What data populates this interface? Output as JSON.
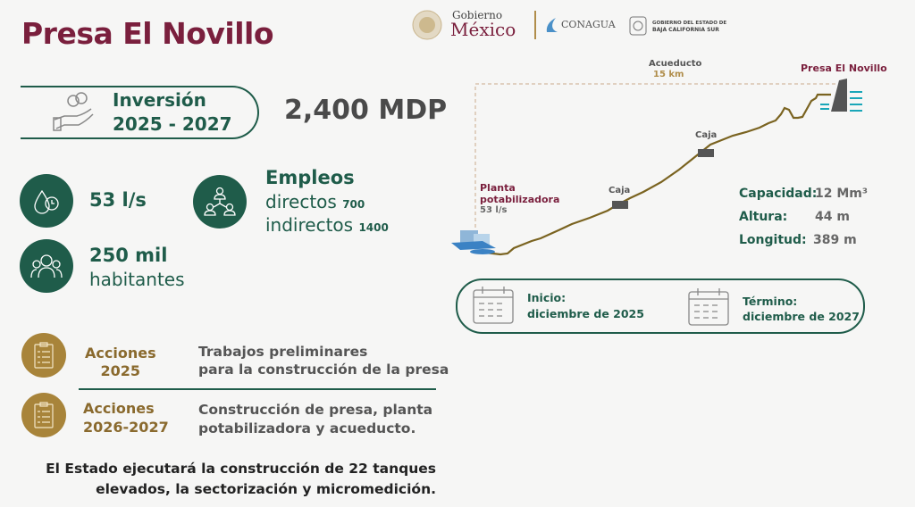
{
  "header": {
    "title": "Presa El Novillo",
    "logos": {
      "gobierno_top": "Gobierno",
      "gobierno_bottom": "México",
      "conagua": "CONAGUA",
      "bcs_line1": "GOBIERNO DEL ESTADO DE",
      "bcs_line2": "BAJA CALIFORNIA SUR"
    }
  },
  "investment": {
    "label": "Inversión",
    "period": "2025 - 2027",
    "amount": "2,400 MDP"
  },
  "flow": {
    "value": "53 l/s"
  },
  "population": {
    "value": "250 mil",
    "label": "habitantes"
  },
  "jobs": {
    "title": "Empleos",
    "direct_label": "directos",
    "direct_value": "700",
    "indirect_label": "indirectos",
    "indirect_value": "1400"
  },
  "actions": [
    {
      "label_line1": "Acciones",
      "label_line2": "2025",
      "text_line1": "Trabajos preliminares",
      "text_line2": "para la construcción de la presa"
    },
    {
      "label_line1": "Acciones",
      "label_line2": "2026-2027",
      "text_line1": "Construcción de presa, planta",
      "text_line2": "potabilizadora y acueducto."
    }
  ],
  "footer": {
    "line1": "El Estado ejecutará la construcción de 22 tanques",
    "line2": "elevados, la sectorización y micromedición."
  },
  "diagram": {
    "aqueduct_label": "Acueducto",
    "aqueduct_length": "15 km",
    "dam_label": "Presa El Novillo",
    "plant_line1": "Planta",
    "plant_line2": "potabilizadora",
    "plant_flow": "53 l/s",
    "box_label_1": "Caja",
    "box_label_2": "Caja"
  },
  "stats": [
    {
      "label": "Capacidad:",
      "value": "12 Mm³"
    },
    {
      "label": "Altura:",
      "value": "44 m"
    },
    {
      "label": "Longitud:",
      "value": "389 m"
    }
  ],
  "schedule": {
    "start_label": "Inicio:",
    "start_date": "diciembre de 2025",
    "end_label": "Término:",
    "end_date": "diciembre de 2027"
  },
  "colors": {
    "maroon": "#7a1f3d",
    "green": "#1f5c4a",
    "gold": "#a8843a",
    "profile": "#7a6320"
  }
}
